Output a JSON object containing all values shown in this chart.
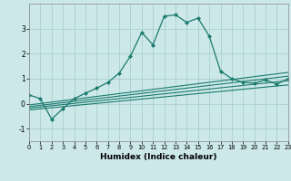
{
  "title": "",
  "xlabel": "Humidex (Indice chaleur)",
  "ylabel": "",
  "bg_color": "#cce8e8",
  "grid_color": "#aad0d0",
  "line_color": "#1a7a6e",
  "xlim": [
    0,
    23
  ],
  "ylim": [
    -1.5,
    4.0
  ],
  "yticks": [
    -1,
    0,
    1,
    2,
    3
  ],
  "xticks": [
    0,
    1,
    2,
    3,
    4,
    5,
    6,
    7,
    8,
    9,
    10,
    11,
    12,
    13,
    14,
    15,
    16,
    17,
    18,
    19,
    20,
    21,
    22,
    23
  ],
  "series": [
    {
      "x": [
        0,
        1,
        2,
        3,
        4,
        5,
        6,
        7,
        8,
        9,
        10,
        11,
        12,
        13,
        14,
        15,
        16,
        17,
        18,
        19,
        20,
        21,
        22,
        23
      ],
      "y": [
        0.35,
        0.2,
        -0.62,
        -0.2,
        0.2,
        0.42,
        0.62,
        0.85,
        1.22,
        1.9,
        2.85,
        2.35,
        3.5,
        3.55,
        3.25,
        3.42,
        2.7,
        1.3,
        1.0,
        0.85,
        0.82,
        0.95,
        0.78,
        1.0
      ],
      "markers": true
    },
    {
      "x": [
        0,
        23
      ],
      "y": [
        -0.05,
        1.25
      ],
      "markers": false
    },
    {
      "x": [
        0,
        23
      ],
      "y": [
        -0.12,
        1.1
      ],
      "markers": false
    },
    {
      "x": [
        0,
        23
      ],
      "y": [
        -0.18,
        0.92
      ],
      "markers": false
    },
    {
      "x": [
        0,
        23
      ],
      "y": [
        -0.25,
        0.75
      ],
      "markers": false
    }
  ]
}
